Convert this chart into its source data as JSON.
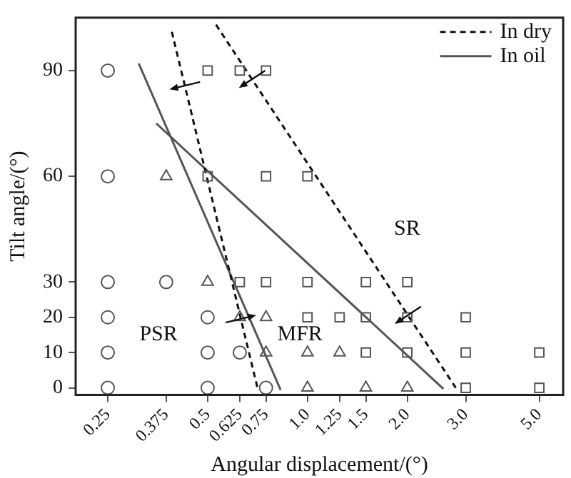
{
  "chart_data": {
    "type": "scatter",
    "xlabel": "Angular displacement/(°)",
    "ylabel": "Tilt angle/(°)",
    "log": "x",
    "xlim": [
      0.2,
      5.9
    ],
    "ylim": [
      -2,
      105
    ],
    "xticks": [
      0.25,
      0.375,
      0.5,
      0.625,
      0.75,
      {
        "value": 1,
        "label": "1.0"
      },
      1.25,
      1.5,
      {
        "value": 2,
        "label": "2.0"
      },
      {
        "value": 3,
        "label": "3.0"
      },
      {
        "value": 5,
        "label": "5.0"
      }
    ],
    "yticks": [
      0,
      10,
      20,
      30,
      60,
      90
    ],
    "legend": "top right",
    "annotations": [
      "PSR",
      "MFR",
      "SR"
    ],
    "series": [
      {
        "type": "scatter",
        "marker": "circle",
        "color": "#555555",
        "x": [
          0.25,
          0.25,
          0.25,
          0.25,
          0.25,
          0.25,
          0.375,
          0.5,
          0.5,
          0.5,
          0.625,
          0.75
        ],
        "values": [
          90,
          60,
          30,
          20,
          10,
          0,
          30,
          20,
          10,
          0,
          10,
          0
        ]
      },
      {
        "type": "scatter",
        "marker": "triangle",
        "color": "#555555",
        "x": [
          0.375,
          0.5,
          0.625,
          0.75,
          0.75,
          1,
          1.25,
          1,
          1.5,
          2
        ],
        "values": [
          60,
          30,
          20,
          20,
          10,
          10,
          10,
          0,
          0,
          0
        ]
      },
      {
        "type": "scatter",
        "marker": "square",
        "color": "#555555",
        "x": [
          0.5,
          0.625,
          0.75,
          0.5,
          0.75,
          1,
          0.625,
          0.75,
          1,
          1.5,
          2,
          1,
          1.25,
          1.5,
          2,
          3,
          1.5,
          2,
          3,
          5,
          3,
          5
        ],
        "values": [
          90,
          90,
          90,
          60,
          60,
          60,
          30,
          30,
          30,
          30,
          30,
          20,
          20,
          20,
          20,
          20,
          10,
          10,
          10,
          10,
          0,
          0
        ]
      },
      {
        "type": "line",
        "name": "In dry",
        "line_style": "dashed",
        "color": "#111111",
        "x": [
          0.39,
          0.71
        ],
        "values": [
          101,
          -0.8
        ]
      },
      {
        "type": "line",
        "line_style": "dashed",
        "color": "#111111",
        "x": [
          0.53,
          2.8
        ],
        "values": [
          103,
          0
        ]
      },
      {
        "type": "line",
        "name": "In oil",
        "line_style": "solid",
        "color": "#555555",
        "x": [
          0.31,
          0.83
        ],
        "values": [
          92,
          -0.6
        ]
      },
      {
        "type": "line",
        "line_style": "solid",
        "color": "#555555",
        "x": [
          0.35,
          2.57
        ],
        "values": [
          75,
          -0.3
        ]
      }
    ]
  }
}
